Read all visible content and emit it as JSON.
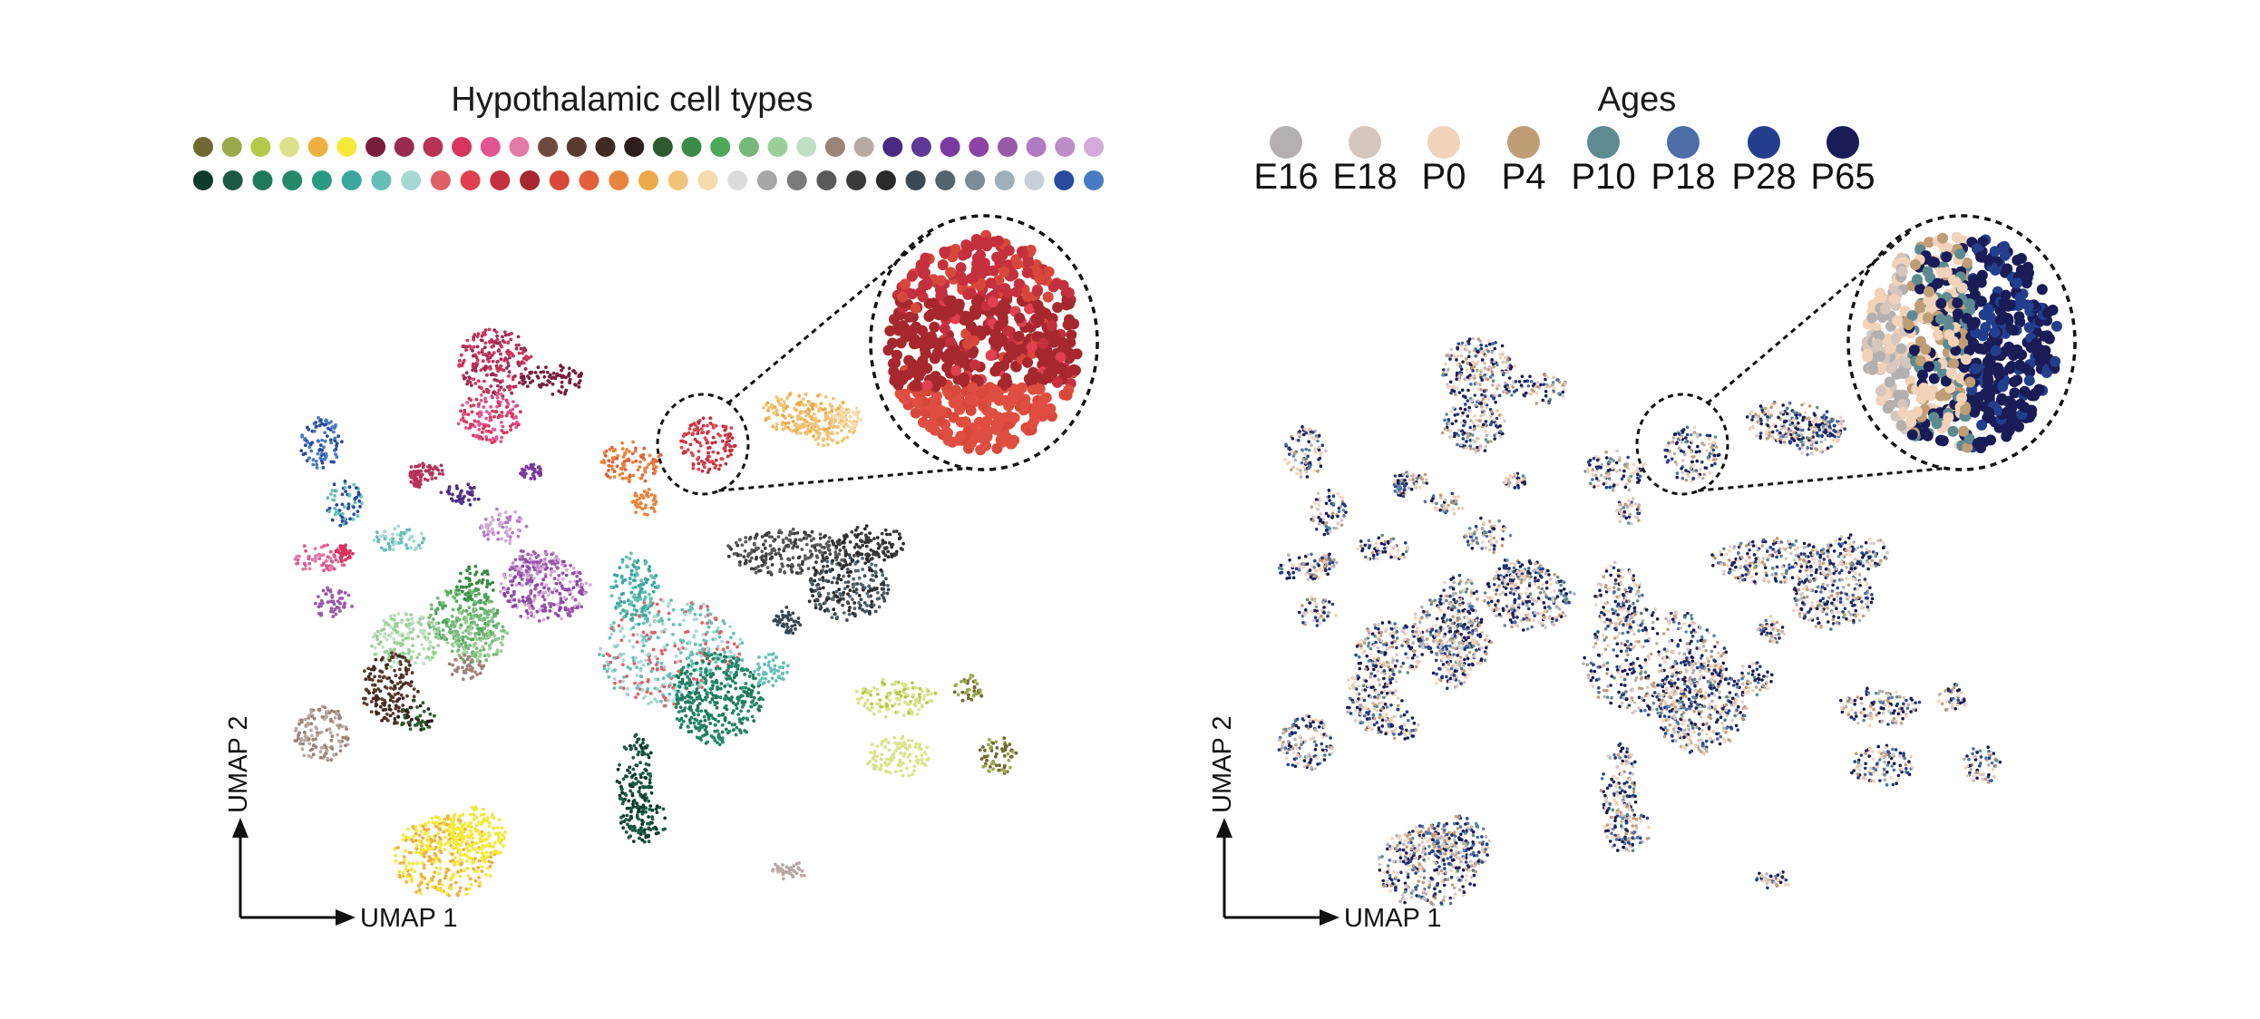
{
  "chart_data": [
    {
      "type": "scatter",
      "title": "Hypothalamic cell types",
      "xlabel": "UMAP 1",
      "ylabel": "UMAP 2",
      "legend_placement": "top",
      "inset_zoom": true,
      "cell_type_colors_row1": [
        "#6f6a32",
        "#9aa84a",
        "#b7c94a",
        "#dbe38a",
        "#f0b040",
        "#f5e93a",
        "#7a1e3e",
        "#9a2a50",
        "#b83258",
        "#d8345e",
        "#e25590",
        "#e47aa6",
        "#6e4a3e",
        "#5a3a2e",
        "#402a24",
        "#2c1e1c",
        "#2e5a30",
        "#3a8a48",
        "#4ea85a",
        "#76b87a",
        "#9ccf98",
        "#bfe0c4",
        "#9a8478",
        "#b8a8a4",
        "#4a2a82",
        "#5e3a96",
        "#7a3aa0",
        "#8c44a8",
        "#9a5aaa",
        "#b07ac4",
        "#bf8ec8",
        "#d4aad8"
      ],
      "cell_type_colors_row2": [
        "#0e3a2e",
        "#1a5a46",
        "#1e7a5a",
        "#23896b",
        "#2a9a82",
        "#3aa6a0",
        "#64bfb8",
        "#a6d8d4",
        "#e06068",
        "#e04050",
        "#c4303e",
        "#a6282e",
        "#d8483a",
        "#e2603a",
        "#e8843c",
        "#eeaa48",
        "#f2c478",
        "#f4dcac",
        "#dcdcdc",
        "#a6a6a6",
        "#7a7a7a",
        "#5a5a5a",
        "#3a3a3a",
        "#2a2a2a",
        "#3a4650",
        "#52646e",
        "#7a8c98",
        "#a0b0ba",
        "#c6d0d6",
        "#2a4aa0",
        "#4a7ac4"
      ]
    },
    {
      "type": "scatter",
      "title": "Ages",
      "xlabel": "UMAP 1",
      "ylabel": "UMAP 2",
      "legend_placement": "top",
      "inset_zoom": true,
      "legend": [
        {
          "label": "E16",
          "color": "#b4b0b0"
        },
        {
          "label": "E18",
          "color": "#d6c6be"
        },
        {
          "label": "P0",
          "color": "#f2d2b8"
        },
        {
          "label": "P4",
          "color": "#bf9e76"
        },
        {
          "label": "P10",
          "color": "#5e8a92"
        },
        {
          "label": "P18",
          "color": "#4e6ea8"
        },
        {
          "label": "P28",
          "color": "#243e8e"
        },
        {
          "label": "P65",
          "color": "#191c56"
        }
      ]
    }
  ]
}
